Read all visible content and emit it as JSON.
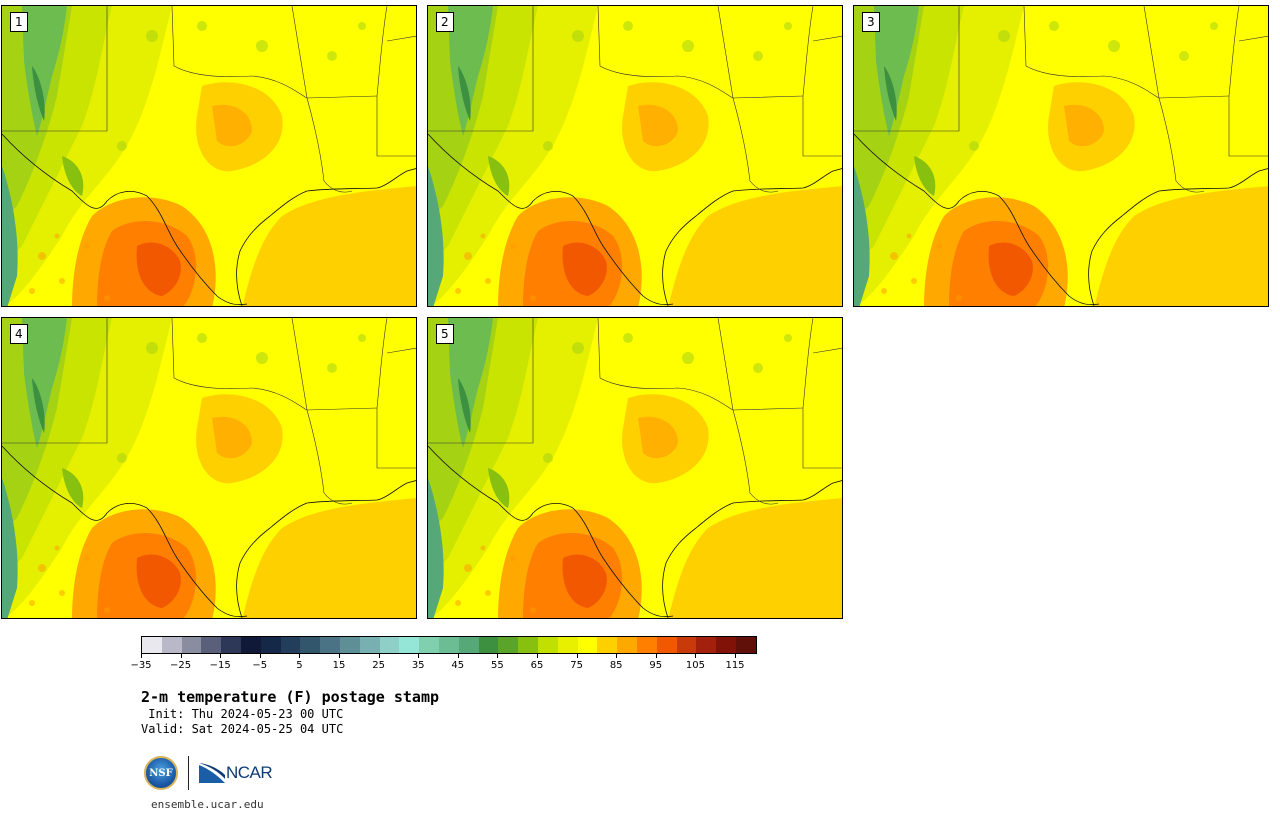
{
  "panels": [
    {
      "label": "1"
    },
    {
      "label": "2"
    },
    {
      "label": "3"
    },
    {
      "label": "4"
    },
    {
      "label": "5"
    }
  ],
  "colorbar": {
    "colors": [
      "#e8e8ee",
      "#b8b8c8",
      "#8a8ca0",
      "#5a607a",
      "#2d3758",
      "#101a38",
      "#152848",
      "#223e5a",
      "#32566c",
      "#4a7486",
      "#5f8f96",
      "#78b0b2",
      "#8ecfc8",
      "#96e6d8",
      "#80d0b0",
      "#6cbc94",
      "#56a878",
      "#3c9040",
      "#5aa428",
      "#88c010",
      "#c2e000",
      "#e8f000",
      "#ffff00",
      "#ffd000",
      "#ffa800",
      "#ff8000",
      "#f25800",
      "#c83a0a",
      "#a2200c",
      "#801208",
      "#601008"
    ],
    "tick_labels": [
      "−35",
      "−25",
      "−15",
      "−5",
      "5",
      "15",
      "25",
      "35",
      "45",
      "55",
      "65",
      "75",
      "85",
      "95",
      "105",
      "115"
    ]
  },
  "title": "2-m temperature (F) postage stamp",
  "init": " Init: Thu 2024-05-23 00 UTC",
  "valid": "Valid: Sat 2024-05-25 04 UTC",
  "logos": {
    "nsf": "NSF",
    "ncar": "NCAR"
  },
  "url": "ensemble.ucar.edu"
}
